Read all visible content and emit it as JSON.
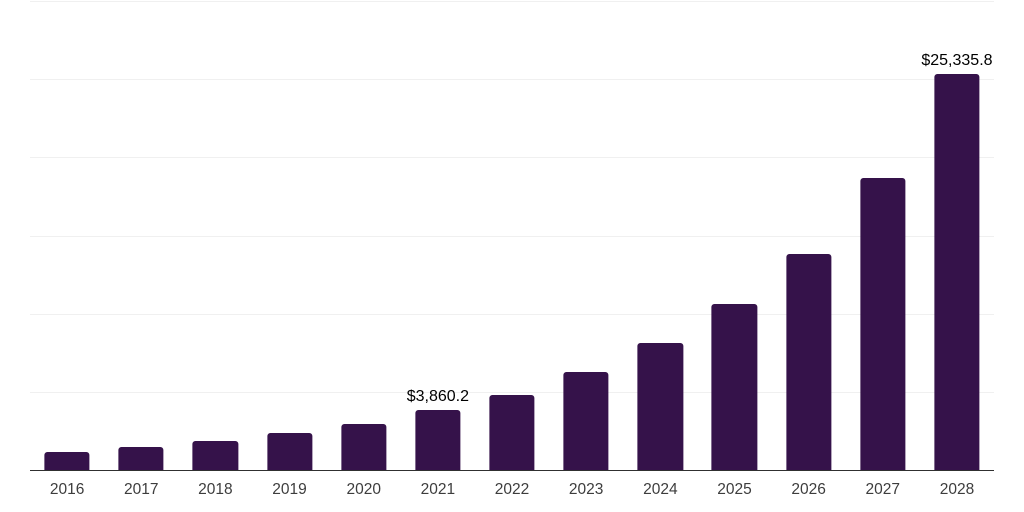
{
  "chart": {
    "background_color": "#ffffff",
    "bar_color": "#35124A",
    "gridline_color": "#f0f0f0",
    "axis_line_color": "#303030",
    "tick_label_color": "#3d3d3d",
    "data_label_color": "#000000"
  },
  "chart_data": {
    "type": "bar",
    "title": "",
    "xlabel": "",
    "ylabel": "",
    "categories": [
      "2016",
      "2017",
      "2018",
      "2019",
      "2020",
      "2021",
      "2022",
      "2023",
      "2024",
      "2025",
      "2026",
      "2027",
      "2028"
    ],
    "values": [
      1150,
      1480,
      1870,
      2380,
      2960,
      3860.2,
      4820,
      6240,
      8100,
      10610,
      13830,
      18650,
      25335.8
    ],
    "data_labels": [
      "",
      "",
      "",
      "",
      "",
      "$3,860.2",
      "",
      "",
      "",
      "",
      "",
      "",
      "$25,335.8"
    ],
    "ylim": [
      0,
      30000
    ],
    "gridline_step": 5000,
    "grid": true,
    "legend": false,
    "y_axis_tick_labels_shown": false
  }
}
